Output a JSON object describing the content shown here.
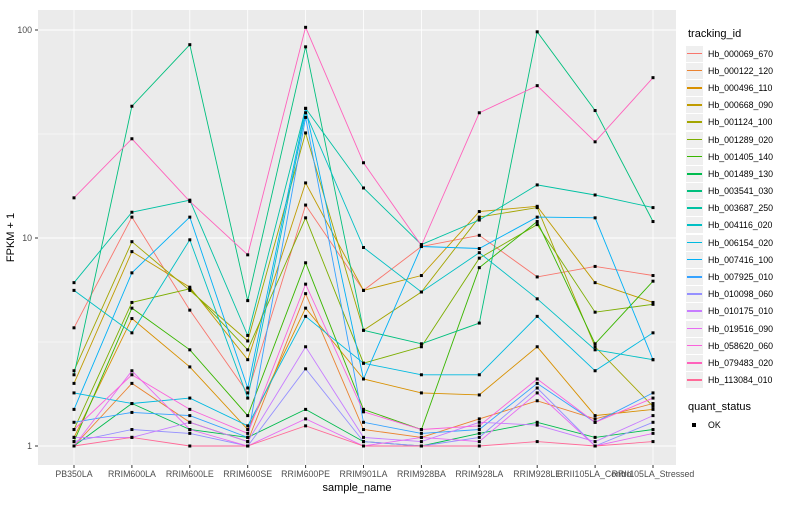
{
  "figure": {
    "y_axis_title": "FPKM + 1",
    "x_axis_title": "sample_name",
    "legend_tracking_title": "tracking_id",
    "legend_quant_title": "quant_status",
    "quant_ok_label": "OK",
    "colors": {
      "panel_bg": "#ebebeb",
      "grid": "#ffffff",
      "axis_text": "#4d4d4d",
      "tick": "#333333",
      "point": "#000000",
      "legend_key_bg": "#efefef"
    }
  },
  "chart_data": {
    "type": "line",
    "title": "",
    "xlabel": "sample_name",
    "ylabel": "FPKM + 1",
    "y_scale": "log10",
    "y_ticks": [
      1,
      10,
      100
    ],
    "y_minor_ticks": [
      3.162,
      31.62
    ],
    "ylim": [
      0.82,
      125
    ],
    "grid": true,
    "legend_position": "right",
    "point_shape": "filled-square",
    "quant_status": "OK",
    "categories": [
      "PB350LA",
      "RRIM600LA",
      "RRIM600LE",
      "RRIM600SE",
      "RRIM600PE",
      "RRIM901LA",
      "RRIM928BA",
      "RRIM928LA",
      "RRIM928LE",
      "RRII105LA_Control",
      "RRII105LA_Stressed"
    ],
    "series": [
      {
        "name": "Hb_000069_670",
        "color": "#F8766D",
        "values": [
          3.7,
          12.6,
          4.5,
          1.8,
          14.4,
          5.6,
          9.1,
          10.3,
          6.5,
          7.3,
          6.6
        ]
      },
      {
        "name": "Hb_000122_120",
        "color": "#EA8331",
        "values": [
          1.0,
          2.0,
          1.3,
          1.05,
          5.4,
          1.2,
          1.1,
          1.35,
          1.65,
          1.35,
          1.6
        ]
      },
      {
        "name": "Hb_000496_110",
        "color": "#D89000",
        "values": [
          1.1,
          4.1,
          2.4,
          1.2,
          4.6,
          2.1,
          1.8,
          1.76,
          3.0,
          1.4,
          1.5
        ]
      },
      {
        "name": "Hb_000668_090",
        "color": "#C09B00",
        "values": [
          2.0,
          8.6,
          5.8,
          2.6,
          18.4,
          5.6,
          6.6,
          13.4,
          14.2,
          6.1,
          4.9
        ]
      },
      {
        "name": "Hb_001124_100",
        "color": "#A3A500",
        "values": [
          2.3,
          9.6,
          5.6,
          3.2,
          32,
          3.6,
          5.5,
          12.6,
          14.0,
          3.0,
          1.55
        ]
      },
      {
        "name": "Hb_001289_020",
        "color": "#7CAE00",
        "values": [
          1.2,
          4.9,
          5.7,
          2.9,
          12.5,
          2.5,
          3.0,
          8.0,
          11.6,
          4.4,
          4.8
        ]
      },
      {
        "name": "Hb_001405_140",
        "color": "#39B600",
        "values": [
          1.05,
          4.6,
          2.9,
          1.4,
          7.6,
          1.5,
          1.2,
          7.2,
          12.0,
          3.1,
          6.2
        ]
      },
      {
        "name": "Hb_001489_130",
        "color": "#00BB4E",
        "values": [
          1.0,
          1.6,
          1.2,
          1.1,
          1.5,
          1.05,
          1.0,
          1.15,
          1.3,
          1.1,
          1.2
        ]
      },
      {
        "name": "Hb_003541_030",
        "color": "#00BF7D",
        "values": [
          2.2,
          43,
          85,
          5.0,
          83,
          3.6,
          3.1,
          3.9,
          98,
          41,
          12.0
        ]
      },
      {
        "name": "Hb_003687_250",
        "color": "#00C1A3",
        "values": [
          6.1,
          13.3,
          15.2,
          3.4,
          42,
          17.4,
          9.3,
          12.2,
          18,
          16.1,
          14.0
        ]
      },
      {
        "name": "Hb_004116_020",
        "color": "#00BFC4",
        "values": [
          5.6,
          3.5,
          9.8,
          1.7,
          40,
          9.0,
          5.5,
          8.5,
          5.1,
          2.9,
          2.6
        ]
      },
      {
        "name": "Hb_006154_020",
        "color": "#00BAE0",
        "values": [
          1.8,
          1.6,
          1.7,
          1.25,
          4.2,
          2.5,
          2.2,
          2.2,
          4.2,
          2.3,
          3.5
        ]
      },
      {
        "name": "Hb_007416_100",
        "color": "#00B0F6",
        "values": [
          1.5,
          6.8,
          12.6,
          1.9,
          42,
          2.1,
          9.1,
          8.9,
          12.6,
          12.5,
          2.6
        ]
      },
      {
        "name": "Hb_007925_010",
        "color": "#35A2FF",
        "values": [
          1.3,
          1.45,
          1.4,
          1.1,
          38,
          1.3,
          1.15,
          1.2,
          2.0,
          1.3,
          1.8
        ]
      },
      {
        "name": "Hb_010098_060",
        "color": "#9590FF",
        "values": [
          1.05,
          1.2,
          1.15,
          1.0,
          2.35,
          1.05,
          1.0,
          1.1,
          1.9,
          1.0,
          1.3
        ]
      },
      {
        "name": "Hb_010175_010",
        "color": "#C77CFF",
        "values": [
          1.1,
          1.1,
          1.3,
          1.05,
          3.0,
          1.1,
          1.05,
          1.3,
          1.26,
          1.05,
          1.4
        ]
      },
      {
        "name": "Hb_019516_090",
        "color": "#E76BF3",
        "values": [
          1.0,
          2.3,
          1.2,
          1.0,
          1.35,
          1.0,
          1.1,
          1.05,
          1.8,
          1.0,
          1.15
        ]
      },
      {
        "name": "Hb_058620_060",
        "color": "#FA62DB",
        "values": [
          1.2,
          2.2,
          1.5,
          1.15,
          6.0,
          1.46,
          1.2,
          1.25,
          2.1,
          1.3,
          1.7
        ]
      },
      {
        "name": "Hb_079483_020",
        "color": "#FF62BC",
        "values": [
          15.6,
          30,
          15.0,
          8.3,
          103,
          23,
          9.2,
          40,
          54,
          29,
          59
        ]
      },
      {
        "name": "Hb_113084_010",
        "color": "#FF6A98",
        "values": [
          1.0,
          1.1,
          1.0,
          1.0,
          1.25,
          1.0,
          1.0,
          1.0,
          1.05,
          1.0,
          1.05
        ]
      }
    ]
  }
}
